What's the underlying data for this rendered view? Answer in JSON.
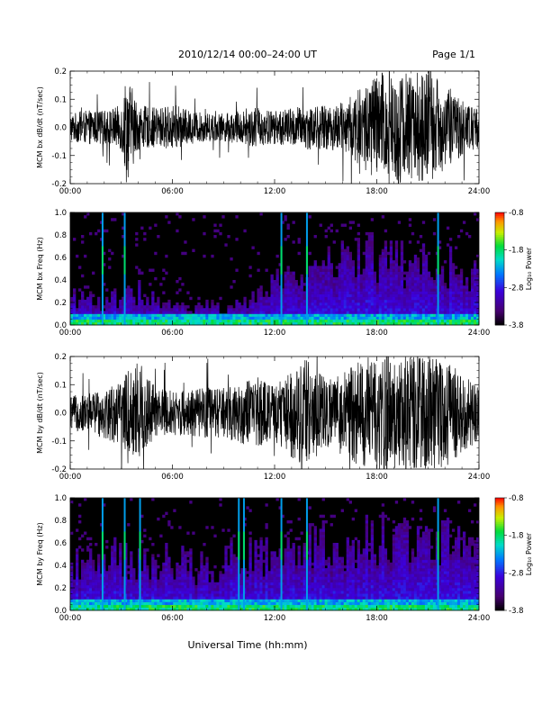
{
  "header": {
    "date_range": "2010/12/14  00:00–24:00 UT",
    "page": "Page 1/1"
  },
  "xlabel": "Universal Time (hh:mm)",
  "chart_data": [
    {
      "id": "bx_dbdt",
      "type": "line",
      "ylabel": "MCM bx dB/dt (nT/sec)",
      "x_ticks": [
        "00:00",
        "06:00",
        "12:00",
        "18:00",
        "24:00"
      ],
      "y_ticks": [
        "0.2",
        "0.1",
        "0.0",
        "-0.1",
        "-0.2"
      ],
      "xlim_hours": [
        0,
        24
      ],
      "ylim": [
        -0.2,
        0.2
      ],
      "amplitude_envelope": {
        "hours": [
          0,
          1,
          2,
          3,
          3.3,
          4,
          5,
          6,
          7,
          8,
          9,
          10,
          11,
          12,
          13,
          14,
          15,
          16,
          17,
          18,
          19,
          20,
          21,
          22,
          23,
          24
        ],
        "amplitude": [
          0.05,
          0.06,
          0.06,
          0.08,
          0.2,
          0.08,
          0.07,
          0.08,
          0.06,
          0.05,
          0.05,
          0.06,
          0.07,
          0.06,
          0.07,
          0.08,
          0.08,
          0.09,
          0.14,
          0.2,
          0.2,
          0.2,
          0.2,
          0.15,
          0.1,
          0.07
        ]
      },
      "color": "#000000"
    },
    {
      "id": "bx_freq",
      "type": "heatmap",
      "ylabel": "MCM bx Freq (Hz)",
      "x_ticks": [
        "00:00",
        "06:00",
        "12:00",
        "18:00",
        "24:00"
      ],
      "y_ticks": [
        "1.0",
        "0.8",
        "0.6",
        "0.4",
        "0.2",
        "0.0"
      ],
      "ylim": [
        0,
        1.0
      ],
      "xlim_hours": [
        0,
        24
      ],
      "colorbar": {
        "label": "Log₁₀ Power",
        "ticks": [
          "-0.8",
          "-1.8",
          "-2.8",
          "-3.8"
        ],
        "range": [
          -3.8,
          -0.8
        ]
      },
      "activity": {
        "hours": [
          0,
          2,
          4,
          6,
          8,
          10,
          12,
          14,
          16,
          18,
          20,
          22,
          24
        ],
        "top_freq": [
          0.25,
          0.2,
          0.3,
          0.15,
          0.15,
          0.2,
          0.35,
          0.45,
          0.55,
          0.6,
          0.5,
          0.55,
          0.4
        ]
      },
      "spikes_hours": [
        1.9,
        3.2,
        12.4,
        13.9,
        21.6
      ]
    },
    {
      "id": "by_dbdt",
      "type": "line",
      "ylabel": "MCM by dB/dt (nT/sec)",
      "x_ticks": [
        "00:00",
        "06:00",
        "12:00",
        "18:00",
        "24:00"
      ],
      "y_ticks": [
        "0.2",
        "0.1",
        "0.0",
        "-0.1",
        "-0.2"
      ],
      "xlim_hours": [
        0,
        24
      ],
      "ylim": [
        -0.2,
        0.2
      ],
      "amplitude_envelope": {
        "hours": [
          0,
          1,
          2,
          3,
          4,
          5,
          6,
          7,
          8,
          9,
          10,
          11,
          12,
          13,
          14,
          15,
          16,
          17,
          18,
          19,
          20,
          21,
          22,
          23,
          24
        ],
        "amplitude": [
          0.06,
          0.07,
          0.09,
          0.12,
          0.2,
          0.09,
          0.08,
          0.08,
          0.09,
          0.09,
          0.11,
          0.12,
          0.1,
          0.16,
          0.2,
          0.12,
          0.14,
          0.2,
          0.2,
          0.2,
          0.2,
          0.2,
          0.2,
          0.14,
          0.1
        ]
      },
      "color": "#000000"
    },
    {
      "id": "by_freq",
      "type": "heatmap",
      "ylabel": "MCM by Freq (Hz)",
      "x_ticks": [
        "00:00",
        "06:00",
        "12:00",
        "18:00",
        "24:00"
      ],
      "y_ticks": [
        "1.0",
        "0.8",
        "0.6",
        "0.4",
        "0.2",
        "0.0"
      ],
      "ylim": [
        0,
        1.0
      ],
      "xlim_hours": [
        0,
        24
      ],
      "colorbar": {
        "label": "Log₁₀ Power",
        "ticks": [
          "-0.8",
          "-1.8",
          "-2.8",
          "-3.8"
        ],
        "range": [
          -3.8,
          -0.8
        ]
      },
      "activity": {
        "hours": [
          0,
          2,
          4,
          6,
          8,
          10,
          12,
          14,
          16,
          18,
          20,
          22,
          24
        ],
        "top_freq": [
          0.4,
          0.5,
          0.45,
          0.45,
          0.35,
          0.5,
          0.5,
          0.6,
          0.55,
          0.65,
          0.6,
          0.6,
          0.55
        ]
      },
      "spikes_hours": [
        1.9,
        3.2,
        4.1,
        9.9,
        10.2,
        12.4,
        13.9,
        21.6
      ]
    }
  ]
}
